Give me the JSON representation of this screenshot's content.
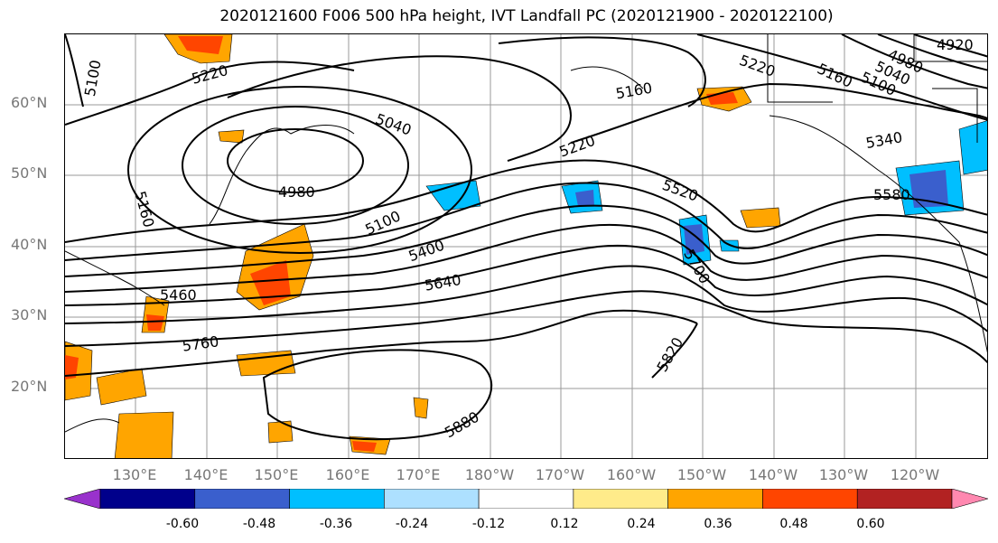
{
  "title": "2020121600 F006 500 hPa height, IVT Landfall PC (2020121900 - 2020122100)",
  "lat_labels": [
    "60°N",
    "50°N",
    "40°N",
    "30°N",
    "20°N"
  ],
  "lon_labels": [
    "130°E",
    "140°E",
    "150°E",
    "160°E",
    "170°E",
    "180°W",
    "170°W",
    "160°W",
    "150°W",
    "140°W",
    "130°W",
    "120°W"
  ],
  "contour_labels": [
    "5100",
    "5220",
    "5040",
    "4980",
    "5160",
    "5160",
    "5220",
    "5220",
    "5100",
    "5400",
    "5460",
    "5520",
    "5580",
    "5340",
    "5700",
    "5640",
    "5760",
    "5820",
    "5880",
    "4920",
    "4980",
    "5040",
    "5100",
    "5160"
  ],
  "colorbar": {
    "tick_labels": [
      "-0.60",
      "-0.48",
      "-0.36",
      "-0.24",
      "-0.12",
      "0.12",
      "0.24",
      "0.36",
      "0.48",
      "0.60"
    ],
    "colors": [
      "#9932CC",
      "#00008B",
      "#3A5FCD",
      "#00BFFF",
      "#ADE0FF",
      "#FFFFFF",
      "#FFEB8A",
      "#FFA500",
      "#FF4500",
      "#B22222",
      "#FF88B0"
    ]
  }
}
